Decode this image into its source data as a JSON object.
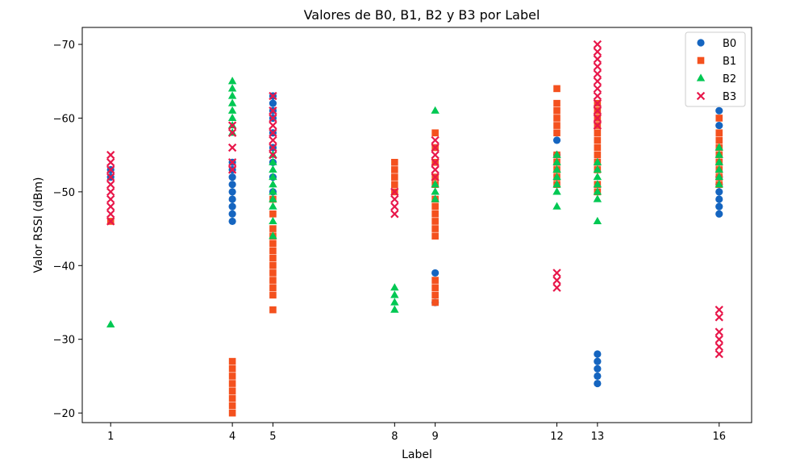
{
  "chart_data": {
    "type": "scatter",
    "title": "Valores de B0, B1, B2 y B3 por Label",
    "xlabel": "Label",
    "ylabel": "Valor RSSI (dBm)",
    "x_ticks": [
      1,
      4,
      5,
      8,
      9,
      12,
      13,
      16
    ],
    "y_ticks": [
      -70,
      -60,
      -50,
      -40,
      -30,
      -20
    ],
    "y_tick_labels": [
      "−70",
      "−60",
      "−50",
      "−40",
      "−30",
      "−20"
    ],
    "xlim": [
      0.3,
      16.8
    ],
    "ylim": [
      -18.7,
      -72.3
    ],
    "y_inverted": true,
    "grid": false,
    "legend_position": "top-right",
    "series": [
      {
        "name": "B0",
        "marker": "circle",
        "color": "#1565C0",
        "points": [
          [
            1,
            -53
          ],
          [
            1,
            -52
          ],
          [
            4,
            -46
          ],
          [
            4,
            -47
          ],
          [
            4,
            -48
          ],
          [
            4,
            -49
          ],
          [
            4,
            -50
          ],
          [
            4,
            -51
          ],
          [
            4,
            -52
          ],
          [
            4,
            -53
          ],
          [
            4,
            -54
          ],
          [
            5,
            -50
          ],
          [
            5,
            -52
          ],
          [
            5,
            -54
          ],
          [
            5,
            -56
          ],
          [
            5,
            -58
          ],
          [
            5,
            -60
          ],
          [
            5,
            -61
          ],
          [
            5,
            -62
          ],
          [
            5,
            -63
          ],
          [
            9,
            -35
          ],
          [
            9,
            -39
          ],
          [
            12,
            -55
          ],
          [
            12,
            -57
          ],
          [
            13,
            -24
          ],
          [
            13,
            -25
          ],
          [
            13,
            -26
          ],
          [
            13,
            -27
          ],
          [
            13,
            -28
          ],
          [
            16,
            -47
          ],
          [
            16,
            -48
          ],
          [
            16,
            -49
          ],
          [
            16,
            -50
          ],
          [
            16,
            -51
          ],
          [
            16,
            -52
          ],
          [
            16,
            -59
          ],
          [
            16,
            -61
          ]
        ]
      },
      {
        "name": "B1",
        "marker": "square",
        "color": "#F4511E",
        "points": [
          [
            1,
            -46
          ],
          [
            4,
            -20
          ],
          [
            4,
            -21
          ],
          [
            4,
            -22
          ],
          [
            4,
            -23
          ],
          [
            4,
            -24
          ],
          [
            4,
            -25
          ],
          [
            4,
            -26
          ],
          [
            4,
            -27
          ],
          [
            5,
            -34
          ],
          [
            5,
            -36
          ],
          [
            5,
            -37
          ],
          [
            5,
            -38
          ],
          [
            5,
            -39
          ],
          [
            5,
            -40
          ],
          [
            5,
            -41
          ],
          [
            5,
            -42
          ],
          [
            5,
            -43
          ],
          [
            5,
            -44
          ],
          [
            5,
            -45
          ],
          [
            5,
            -47
          ],
          [
            5,
            -49
          ],
          [
            8,
            -50
          ],
          [
            8,
            -51
          ],
          [
            8,
            -52
          ],
          [
            8,
            -53
          ],
          [
            8,
            -54
          ],
          [
            9,
            -35
          ],
          [
            9,
            -36
          ],
          [
            9,
            -37
          ],
          [
            9,
            -38
          ],
          [
            9,
            -44
          ],
          [
            9,
            -45
          ],
          [
            9,
            -46
          ],
          [
            9,
            -47
          ],
          [
            9,
            -48
          ],
          [
            9,
            -49
          ],
          [
            9,
            -51
          ],
          [
            9,
            -52
          ],
          [
            9,
            -54
          ],
          [
            9,
            -56
          ],
          [
            9,
            -58
          ],
          [
            12,
            -51
          ],
          [
            12,
            -52
          ],
          [
            12,
            -53
          ],
          [
            12,
            -54
          ],
          [
            12,
            -55
          ],
          [
            12,
            -58
          ],
          [
            12,
            -59
          ],
          [
            12,
            -60
          ],
          [
            12,
            -61
          ],
          [
            12,
            -62
          ],
          [
            12,
            -64
          ],
          [
            13,
            -50
          ],
          [
            13,
            -51
          ],
          [
            13,
            -53
          ],
          [
            13,
            -54
          ],
          [
            13,
            -55
          ],
          [
            13,
            -56
          ],
          [
            13,
            -57
          ],
          [
            13,
            -58
          ],
          [
            13,
            -59
          ],
          [
            13,
            -60
          ],
          [
            13,
            -61
          ],
          [
            13,
            -62
          ],
          [
            16,
            -51
          ],
          [
            16,
            -52
          ],
          [
            16,
            -53
          ],
          [
            16,
            -54
          ],
          [
            16,
            -55
          ],
          [
            16,
            -56
          ],
          [
            16,
            -57
          ],
          [
            16,
            -58
          ],
          [
            16,
            -60
          ]
        ]
      },
      {
        "name": "B2",
        "marker": "triangle",
        "color": "#00C853",
        "points": [
          [
            1,
            -32
          ],
          [
            4,
            -58
          ],
          [
            4,
            -59
          ],
          [
            4,
            -60
          ],
          [
            4,
            -61
          ],
          [
            4,
            -62
          ],
          [
            4,
            -63
          ],
          [
            4,
            -64
          ],
          [
            4,
            -65
          ],
          [
            5,
            -44
          ],
          [
            5,
            -46
          ],
          [
            5,
            -48
          ],
          [
            5,
            -49
          ],
          [
            5,
            -50
          ],
          [
            5,
            -51
          ],
          [
            5,
            -52
          ],
          [
            5,
            -53
          ],
          [
            5,
            -54
          ],
          [
            5,
            -55
          ],
          [
            8,
            -34
          ],
          [
            8,
            -35
          ],
          [
            8,
            -36
          ],
          [
            8,
            -37
          ],
          [
            9,
            -49
          ],
          [
            9,
            -50
          ],
          [
            9,
            -51
          ],
          [
            9,
            -61
          ],
          [
            12,
            -48
          ],
          [
            12,
            -50
          ],
          [
            12,
            -51
          ],
          [
            12,
            -52
          ],
          [
            12,
            -53
          ],
          [
            12,
            -54
          ],
          [
            12,
            -55
          ],
          [
            13,
            -46
          ],
          [
            13,
            -49
          ],
          [
            13,
            -50
          ],
          [
            13,
            -51
          ],
          [
            13,
            -52
          ],
          [
            13,
            -53
          ],
          [
            13,
            -54
          ],
          [
            16,
            -51
          ],
          [
            16,
            -52
          ],
          [
            16,
            -53
          ],
          [
            16,
            -54
          ],
          [
            16,
            -55
          ],
          [
            16,
            -56
          ]
        ]
      },
      {
        "name": "B3",
        "marker": "x",
        "color": "#E8174A",
        "points": [
          [
            1,
            -46
          ],
          [
            1,
            -47
          ],
          [
            1,
            -48
          ],
          [
            1,
            -49
          ],
          [
            1,
            -50
          ],
          [
            1,
            -51
          ],
          [
            1,
            -52
          ],
          [
            1,
            -53
          ],
          [
            1,
            -54
          ],
          [
            1,
            -55
          ],
          [
            4,
            -53
          ],
          [
            4,
            -54
          ],
          [
            4,
            -56
          ],
          [
            4,
            -58
          ],
          [
            4,
            -59
          ],
          [
            5,
            -55
          ],
          [
            5,
            -56
          ],
          [
            5,
            -57
          ],
          [
            5,
            -58
          ],
          [
            5,
            -59
          ],
          [
            5,
            -60
          ],
          [
            5,
            -61
          ],
          [
            5,
            -63
          ],
          [
            8,
            -47
          ],
          [
            8,
            -48
          ],
          [
            8,
            -49
          ],
          [
            8,
            -50
          ],
          [
            9,
            -52
          ],
          [
            9,
            -53
          ],
          [
            9,
            -54
          ],
          [
            9,
            -55
          ],
          [
            9,
            -56
          ],
          [
            9,
            -57
          ],
          [
            12,
            -37
          ],
          [
            12,
            -38
          ],
          [
            12,
            -39
          ],
          [
            13,
            -59
          ],
          [
            13,
            -60
          ],
          [
            13,
            -61
          ],
          [
            13,
            -62
          ],
          [
            13,
            -63
          ],
          [
            13,
            -64
          ],
          [
            13,
            -65
          ],
          [
            13,
            -66
          ],
          [
            13,
            -67
          ],
          [
            13,
            -68
          ],
          [
            13,
            -69
          ],
          [
            13,
            -70
          ],
          [
            16,
            -28
          ],
          [
            16,
            -29
          ],
          [
            16,
            -30
          ],
          [
            16,
            -31
          ],
          [
            16,
            -33
          ],
          [
            16,
            -34
          ]
        ]
      }
    ]
  }
}
